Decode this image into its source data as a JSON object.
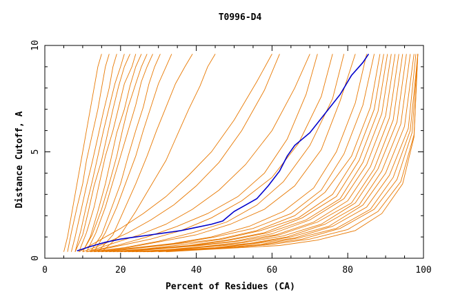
{
  "chart_data": {
    "type": "line",
    "title": "T0996-D4",
    "xlabel": "Percent of Residues (CA)",
    "ylabel": "Distance Cutoff, A",
    "xlim": [
      0,
      100
    ],
    "ylim": [
      0,
      10
    ],
    "xticks": [
      0,
      20,
      40,
      60,
      80,
      100
    ],
    "yticks": [
      0,
      5,
      10
    ],
    "grid": false,
    "legend": "none",
    "colors": {
      "highlight": "#0000cc",
      "others": "#e87800",
      "axis": "#000000"
    },
    "highlight_series": {
      "x": [
        8.5,
        12,
        16,
        20,
        24,
        28,
        32,
        36,
        40,
        44,
        47,
        50,
        53,
        56,
        59,
        62,
        64,
        66,
        70,
        74,
        78,
        81,
        84,
        85.5
      ],
      "y": [
        0.35,
        0.55,
        0.75,
        0.9,
        1.0,
        1.1,
        1.2,
        1.3,
        1.45,
        1.6,
        1.75,
        2.2,
        2.5,
        2.8,
        3.4,
        4.1,
        4.8,
        5.3,
        5.9,
        6.8,
        7.7,
        8.6,
        9.2,
        9.6
      ]
    },
    "background_series": [
      {
        "x": [
          5,
          6,
          7,
          8,
          9,
          10,
          11,
          12,
          13,
          14,
          15
        ],
        "y": [
          0.3,
          1,
          2,
          3,
          4,
          5,
          6,
          7,
          8,
          9,
          9.6
        ]
      },
      {
        "x": [
          6,
          7,
          8.5,
          10,
          11,
          12.5,
          14,
          15,
          16,
          17
        ],
        "y": [
          0.3,
          1.2,
          2.4,
          3.5,
          4.6,
          5.8,
          7,
          8,
          9,
          9.6
        ]
      },
      {
        "x": [
          7,
          8,
          9.5,
          11,
          12.5,
          14,
          15.5,
          17,
          18,
          19
        ],
        "y": [
          0.3,
          1,
          2.2,
          3.4,
          4.5,
          5.7,
          6.9,
          8,
          9,
          9.6
        ]
      },
      {
        "x": [
          8,
          9.5,
          11,
          12.5,
          14,
          15.5,
          17,
          18.5,
          20,
          21
        ],
        "y": [
          0.3,
          1.3,
          2.5,
          3.6,
          4.8,
          6,
          7.1,
          8.2,
          9,
          9.6
        ]
      },
      {
        "x": [
          8,
          10,
          11.5,
          13,
          15,
          16.5,
          18,
          19.5,
          21,
          22.5
        ],
        "y": [
          0.3,
          1.1,
          2.2,
          3.4,
          4.6,
          5.8,
          7,
          8.1,
          9,
          9.6
        ]
      },
      {
        "x": [
          9,
          11,
          13,
          14.5,
          16,
          18,
          19.5,
          21,
          23,
          24
        ],
        "y": [
          0.3,
          1.2,
          2.4,
          3.6,
          4.8,
          6,
          7.1,
          8.2,
          9,
          9.6
        ]
      },
      {
        "x": [
          10,
          12,
          14,
          16,
          17.5,
          19,
          21,
          22.5,
          24,
          25.5
        ],
        "y": [
          0.3,
          1,
          2.2,
          3.5,
          4.7,
          5.9,
          7,
          8.1,
          9,
          9.6
        ]
      },
      {
        "x": [
          10,
          12.5,
          15,
          17,
          19,
          20.5,
          22,
          24,
          25.5,
          27
        ],
        "y": [
          0.3,
          1.1,
          2.3,
          3.5,
          4.8,
          6,
          7.1,
          8.2,
          9,
          9.6
        ]
      },
      {
        "x": [
          11,
          13.5,
          16,
          18,
          20,
          22,
          24,
          25.5,
          27,
          28.5
        ],
        "y": [
          0.3,
          1.2,
          2.4,
          3.6,
          4.8,
          6,
          7.2,
          8.3,
          9,
          9.6
        ]
      },
      {
        "x": [
          12,
          15,
          17.5,
          20,
          22,
          24,
          26,
          27.5,
          29,
          30.5
        ],
        "y": [
          0.3,
          1.1,
          2.3,
          3.5,
          4.8,
          6,
          7.1,
          8.2,
          9,
          9.6
        ]
      },
      {
        "x": [
          13,
          16,
          19,
          21.5,
          24,
          26,
          28,
          30,
          32,
          33.5
        ],
        "y": [
          0.3,
          1.2,
          2.4,
          3.6,
          4.8,
          6,
          7.1,
          8.2,
          9,
          9.6
        ]
      },
      {
        "x": [
          14,
          18,
          21,
          24,
          27,
          29.5,
          32,
          34.5,
          37,
          39
        ],
        "y": [
          0.3,
          1.1,
          2.3,
          3.5,
          4.8,
          6,
          7.1,
          8.2,
          9,
          9.6
        ]
      },
      {
        "x": [
          15,
          20,
          24,
          28,
          32,
          35,
          38,
          41,
          43,
          45
        ],
        "y": [
          0.3,
          1.1,
          2.2,
          3.4,
          4.6,
          5.8,
          7,
          8.1,
          9,
          9.6
        ]
      },
      {
        "x": [
          9,
          14,
          20,
          26,
          32,
          38,
          44,
          50,
          56,
          60
        ],
        "y": [
          0.3,
          0.8,
          1.4,
          2.1,
          2.9,
          3.9,
          5,
          6.5,
          8.3,
          9.6
        ]
      },
      {
        "x": [
          10,
          16,
          22,
          28,
          34,
          40,
          46,
          52,
          58,
          62
        ],
        "y": [
          0.3,
          0.7,
          1.2,
          1.8,
          2.5,
          3.4,
          4.5,
          6,
          7.9,
          9.6
        ]
      },
      {
        "x": [
          11,
          18,
          25,
          32,
          39,
          46,
          53,
          60,
          66,
          70
        ],
        "y": [
          0.3,
          0.7,
          1.1,
          1.6,
          2.3,
          3.2,
          4.4,
          6,
          8,
          9.6
        ]
      },
      {
        "x": [
          11,
          19,
          27,
          35,
          43,
          51,
          58,
          64,
          69,
          72
        ],
        "y": [
          0.3,
          0.6,
          1,
          1.5,
          2.1,
          2.9,
          4,
          5.6,
          7.7,
          9.6
        ]
      },
      {
        "x": [
          12,
          20,
          28,
          36,
          44,
          52,
          60,
          67,
          73,
          76
        ],
        "y": [
          0.3,
          0.6,
          0.9,
          1.3,
          1.9,
          2.7,
          3.8,
          5.4,
          7.6,
          9.6
        ]
      },
      {
        "x": [
          12,
          21,
          30,
          39,
          48,
          56,
          63,
          70,
          76,
          79
        ],
        "y": [
          0.3,
          0.5,
          0.8,
          1.2,
          1.7,
          2.5,
          3.6,
          5.3,
          7.5,
          9.6
        ]
      },
      {
        "x": [
          13,
          22,
          31,
          40,
          49,
          58,
          66,
          73,
          78,
          82
        ],
        "y": [
          0.3,
          0.5,
          0.8,
          1.1,
          1.6,
          2.3,
          3.4,
          5.1,
          7.4,
          9.6
        ]
      },
      {
        "x": [
          14,
          24,
          34,
          44,
          54,
          63,
          71,
          77,
          82,
          85
        ],
        "y": [
          0.3,
          0.5,
          0.7,
          1,
          1.5,
          2.2,
          3.3,
          5,
          7.3,
          9.6
        ]
      },
      {
        "x": [
          15,
          25,
          35,
          45,
          55,
          65,
          73,
          79,
          84,
          87
        ],
        "y": [
          0.3,
          0.5,
          0.7,
          1,
          1.4,
          2.1,
          3.2,
          4.9,
          7.2,
          9.6
        ]
      },
      {
        "x": [
          16,
          26,
          36,
          46,
          56,
          66,
          74,
          81,
          86,
          88.5
        ],
        "y": [
          0.3,
          0.5,
          0.7,
          0.9,
          1.3,
          2,
          3.1,
          4.8,
          7.1,
          9.6
        ]
      },
      {
        "x": [
          17,
          27,
          37,
          47,
          57,
          67,
          76,
          82,
          87,
          89.5
        ],
        "y": [
          0.3,
          0.45,
          0.65,
          0.9,
          1.3,
          1.9,
          3,
          4.7,
          7,
          9.6
        ]
      },
      {
        "x": [
          18,
          28,
          38,
          48,
          58,
          68,
          77,
          83,
          88,
          90.5
        ],
        "y": [
          0.3,
          0.45,
          0.6,
          0.85,
          1.2,
          1.9,
          2.9,
          4.6,
          6.9,
          9.6
        ]
      },
      {
        "x": [
          19,
          29,
          39,
          49,
          59,
          69,
          78,
          84,
          89,
          91.5
        ],
        "y": [
          0.3,
          0.45,
          0.6,
          0.85,
          1.2,
          1.8,
          2.8,
          4.5,
          6.8,
          9.6
        ]
      },
      {
        "x": [
          20,
          30,
          40,
          50,
          60,
          70,
          79,
          85,
          90,
          92.5
        ],
        "y": [
          0.3,
          0.45,
          0.6,
          0.8,
          1.15,
          1.8,
          2.8,
          4.4,
          6.7,
          9.6
        ]
      },
      {
        "x": [
          21,
          31,
          41,
          51,
          61,
          71,
          80,
          86,
          91,
          93.5
        ],
        "y": [
          0.3,
          0.45,
          0.6,
          0.8,
          1.1,
          1.7,
          2.7,
          4.3,
          6.6,
          9.6
        ]
      },
      {
        "x": [
          22,
          32,
          42,
          52,
          62,
          72,
          81,
          87,
          92,
          94.5
        ],
        "y": [
          0.3,
          0.4,
          0.55,
          0.75,
          1.1,
          1.7,
          2.6,
          4.2,
          6.5,
          9.6
        ]
      },
      {
        "x": [
          23,
          33,
          43,
          53,
          63,
          73,
          82,
          88,
          93,
          95.5
        ],
        "y": [
          0.3,
          0.4,
          0.55,
          0.75,
          1.05,
          1.6,
          2.6,
          4.2,
          6.4,
          9.6
        ]
      },
      {
        "x": [
          24,
          34,
          44,
          54,
          64,
          74,
          83,
          89,
          94,
          96.5
        ],
        "y": [
          0.3,
          0.4,
          0.55,
          0.7,
          1,
          1.6,
          2.5,
          4.1,
          6.3,
          9.6
        ]
      },
      {
        "x": [
          25,
          35,
          45,
          55,
          65,
          75,
          84,
          90,
          95,
          97.5
        ],
        "y": [
          0.3,
          0.4,
          0.5,
          0.7,
          1,
          1.5,
          2.5,
          4,
          6.2,
          9.6
        ]
      },
      {
        "x": [
          26,
          36,
          46,
          56,
          66,
          76,
          85,
          91,
          96,
          98
        ],
        "y": [
          0.3,
          0.4,
          0.5,
          0.7,
          0.95,
          1.5,
          2.4,
          3.9,
          6.1,
          9.6
        ]
      },
      {
        "x": [
          27,
          37,
          47,
          57,
          67,
          77,
          86,
          92,
          96.5,
          98.5
        ],
        "y": [
          0.3,
          0.4,
          0.5,
          0.65,
          0.95,
          1.4,
          2.3,
          3.8,
          6,
          9.6
        ]
      },
      {
        "x": [
          28,
          38,
          48,
          58,
          68,
          78,
          87,
          93,
          97,
          98.5
        ],
        "y": [
          0.3,
          0.4,
          0.5,
          0.65,
          0.9,
          1.4,
          2.3,
          3.7,
          5.9,
          9.6
        ]
      },
      {
        "x": [
          30,
          40,
          50,
          60,
          70,
          80,
          88,
          94,
          97.5,
          98.5
        ],
        "y": [
          0.3,
          0.4,
          0.5,
          0.65,
          0.9,
          1.35,
          2.2,
          3.6,
          5.8,
          9.6
        ]
      },
      {
        "x": [
          32,
          42,
          52,
          62,
          72,
          82,
          89,
          94.5,
          97.5,
          98.5
        ],
        "y": [
          0.3,
          0.4,
          0.5,
          0.6,
          0.85,
          1.3,
          2.1,
          3.5,
          5.7,
          9.6
        ]
      }
    ]
  }
}
